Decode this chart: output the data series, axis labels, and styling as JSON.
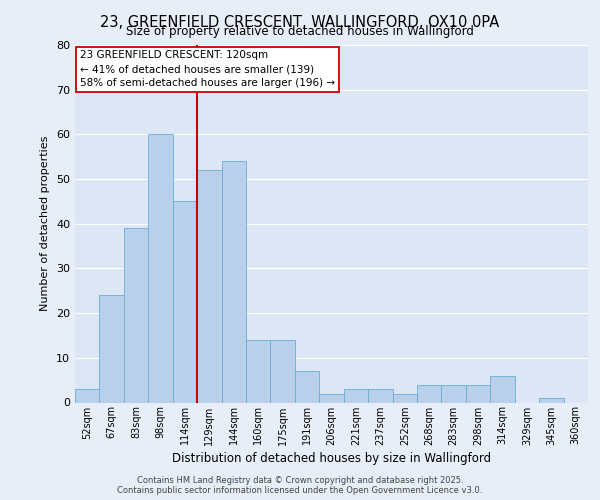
{
  "title": "23, GREENFIELD CRESCENT, WALLINGFORD, OX10 0PA",
  "subtitle": "Size of property relative to detached houses in Wallingford",
  "xlabel": "Distribution of detached houses by size in Wallingford",
  "ylabel": "Number of detached properties",
  "bin_labels": [
    "52sqm",
    "67sqm",
    "83sqm",
    "98sqm",
    "114sqm",
    "129sqm",
    "144sqm",
    "160sqm",
    "175sqm",
    "191sqm",
    "206sqm",
    "221sqm",
    "237sqm",
    "252sqm",
    "268sqm",
    "283sqm",
    "298sqm",
    "314sqm",
    "329sqm",
    "345sqm",
    "360sqm"
  ],
  "bar_values": [
    3,
    24,
    39,
    60,
    45,
    52,
    54,
    14,
    14,
    7,
    2,
    3,
    3,
    2,
    4,
    4,
    4,
    6,
    0,
    1,
    0
  ],
  "bar_color": "#b8d0ea",
  "bar_edge_color": "#6aaed6",
  "vline_x_index": 4.5,
  "vline_color": "#cc0000",
  "annotation_title": "23 GREENFIELD CRESCENT: 120sqm",
  "annotation_line1": "← 41% of detached houses are smaller (139)",
  "annotation_line2": "58% of semi-detached houses are larger (196) →",
  "annotation_box_color": "#ffffff",
  "annotation_box_edge": "#cc0000",
  "ylim": [
    0,
    80
  ],
  "yticks": [
    0,
    10,
    20,
    30,
    40,
    50,
    60,
    70,
    80
  ],
  "bg_color": "#e8eef7",
  "plot_bg_color": "#dce6f5",
  "footer1": "Contains HM Land Registry data © Crown copyright and database right 2025.",
  "footer2": "Contains public sector information licensed under the Open Government Licence v3.0."
}
